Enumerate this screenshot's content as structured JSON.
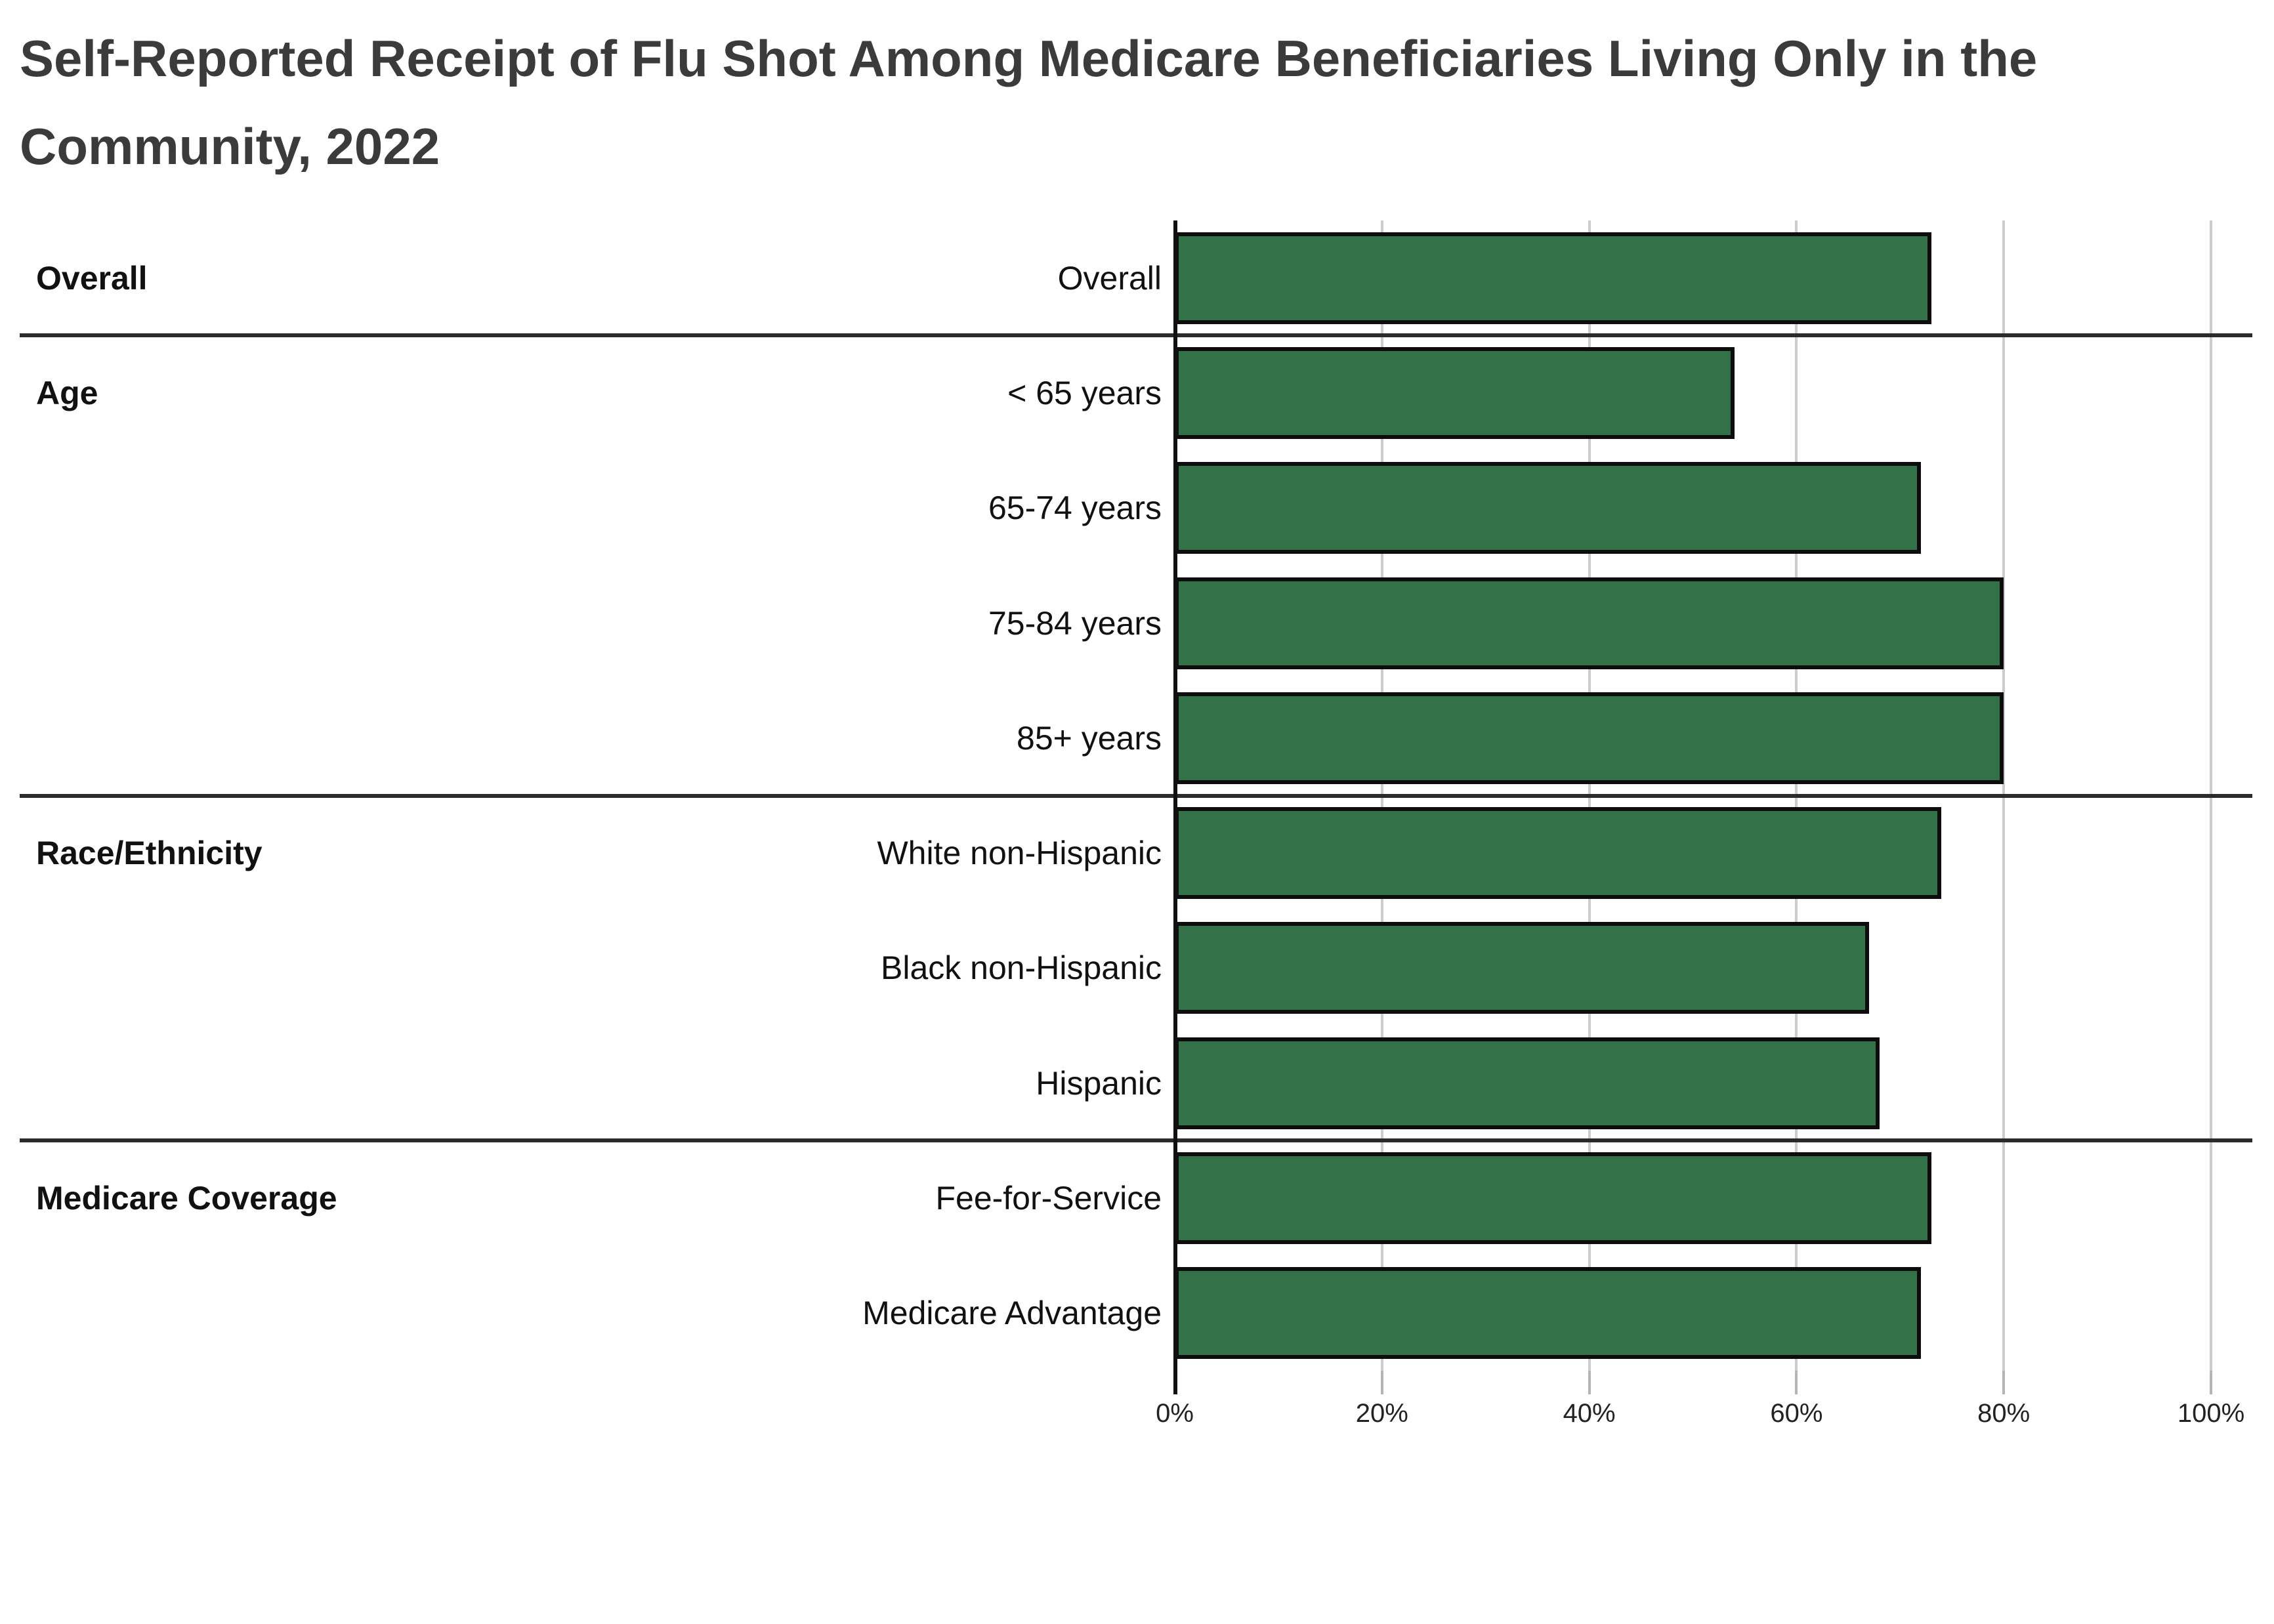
{
  "title": "Self-Reported Receipt of Flu Shot Among Medicare Beneficiaries Living Only in the Community, 2022",
  "chart_data": {
    "type": "bar",
    "orientation": "horizontal",
    "title": "Self-Reported Receipt of Flu Shot Among Medicare Beneficiaries Living Only in the Community, 2022",
    "xlabel": "",
    "ylabel": "",
    "xlim": [
      0,
      100
    ],
    "x_ticks": [
      {
        "label": "0%",
        "value": 0
      },
      {
        "label": "20%",
        "value": 20
      },
      {
        "label": "40%",
        "value": 40
      },
      {
        "label": "60%",
        "value": 60
      },
      {
        "label": "80%",
        "value": 80
      },
      {
        "label": "100%",
        "value": 100
      }
    ],
    "unit": "percent",
    "grid": true,
    "legend": false,
    "groups": [
      {
        "label": "Overall",
        "rows": [
          {
            "label": "Overall",
            "value": 73
          }
        ]
      },
      {
        "label": "Age",
        "rows": [
          {
            "label": "< 65 years",
            "value": 54
          },
          {
            "label": "65-74 years",
            "value": 72
          },
          {
            "label": "75-84 years",
            "value": 80
          },
          {
            "label": "85+ years",
            "value": 80
          }
        ]
      },
      {
        "label": "Race/Ethnicity",
        "rows": [
          {
            "label": "White non-Hispanic",
            "value": 74
          },
          {
            "label": "Black non-Hispanic",
            "value": 67
          },
          {
            "label": "Hispanic",
            "value": 68
          }
        ]
      },
      {
        "label": "Medicare Coverage",
        "rows": [
          {
            "label": "Fee-for-Service",
            "value": 73
          },
          {
            "label": "Medicare Advantage",
            "value": 72
          }
        ]
      }
    ],
    "colors": {
      "bar_fill": "#337249",
      "bar_border": "#0d0d0d",
      "gridline": "#cccccc",
      "tick": "#b5b5b5",
      "axis_line": "#111111",
      "section_divider": "#2b2b2b",
      "title_text": "#3b3b3b",
      "label_text": "#111111"
    }
  }
}
